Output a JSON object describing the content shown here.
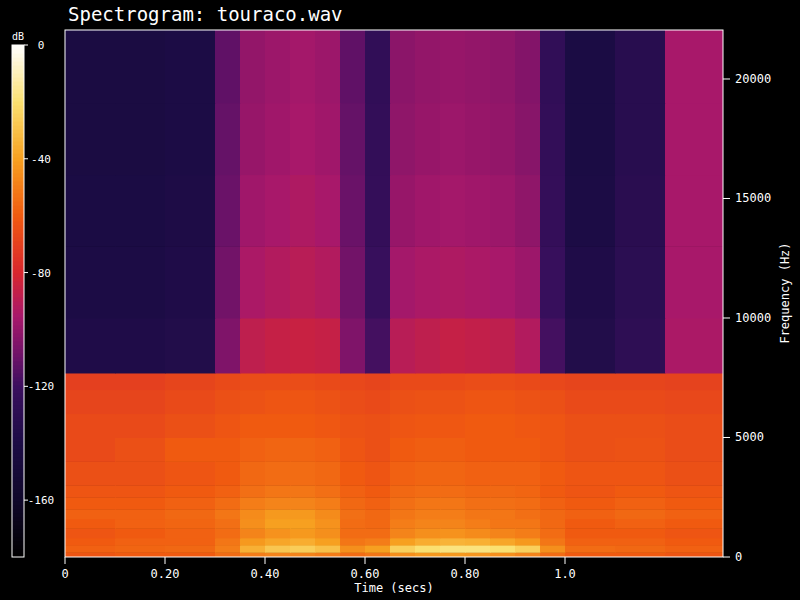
{
  "chart_data": {
    "type": "heatmap",
    "title": "Spectrogram: touraco.wav",
    "x_label": "Time (secs)",
    "y_label": "Frequency (Hz)",
    "xlim": [
      0,
      1.316
    ],
    "ylim": [
      0,
      22050
    ],
    "xticks": [
      0,
      {
        "value": 0.2,
        "label": "0.20"
      },
      {
        "value": 0.4,
        "label": "0.40"
      },
      {
        "value": 0.6,
        "label": "0.60"
      },
      {
        "value": 0.8,
        "label": "0.80"
      },
      {
        "value": 1.0,
        "label": "1.0"
      }
    ],
    "yticks": [
      0,
      5000,
      10000,
      15000,
      20000
    ],
    "time_edges": [
      0,
      0.1,
      0.2,
      0.3,
      0.35,
      0.4,
      0.45,
      0.5,
      0.55,
      0.6,
      0.65,
      0.7,
      0.75,
      0.8,
      0.85,
      0.9,
      0.95,
      1.0,
      1.1,
      1.2,
      1.316
    ],
    "frequency_edges": [
      0,
      200,
      500,
      800,
      1200,
      1600,
      2000,
      2500,
      3000,
      4000,
      5000,
      6000,
      7000,
      7700,
      10000,
      13000,
      16000,
      19000,
      22050
    ],
    "cells": [
      [
        -62,
        -60,
        -60,
        -55,
        -50,
        -48,
        -48,
        -50,
        -55,
        -52,
        -45,
        -42,
        -42,
        -43,
        -45,
        -48,
        -55,
        -60,
        -60,
        -62
      ],
      [
        -58,
        -57,
        -56,
        -50,
        -35,
        -28,
        -26,
        -30,
        -45,
        -40,
        -25,
        -20,
        -18,
        -18,
        -20,
        -25,
        -45,
        -55,
        -56,
        -58
      ],
      [
        -60,
        -58,
        -58,
        -52,
        -42,
        -38,
        -36,
        -40,
        -52,
        -50,
        -40,
        -36,
        -34,
        -35,
        -38,
        -42,
        -52,
        -58,
        -58,
        -60
      ],
      [
        -62,
        -60,
        -58,
        -55,
        -48,
        -44,
        -42,
        -45,
        -55,
        -55,
        -48,
        -45,
        -44,
        -46,
        -48,
        -50,
        -55,
        -60,
        -60,
        -62
      ],
      [
        -60,
        -58,
        -57,
        -54,
        -45,
        -40,
        -40,
        -44,
        -55,
        -56,
        -50,
        -48,
        -48,
        -50,
        -52,
        -52,
        -56,
        -60,
        -58,
        -60
      ],
      [
        -58,
        -58,
        -56,
        -52,
        -46,
        -42,
        -42,
        -46,
        -54,
        -56,
        -52,
        -50,
        -50,
        -52,
        -52,
        -54,
        -56,
        -58,
        -56,
        -58
      ],
      [
        -60,
        -60,
        -58,
        -55,
        -50,
        -48,
        -48,
        -50,
        -56,
        -58,
        -54,
        -52,
        -52,
        -54,
        -54,
        -55,
        -58,
        -60,
        -58,
        -60
      ],
      [
        -62,
        -62,
        -60,
        -58,
        -54,
        -52,
        -52,
        -54,
        -58,
        -60,
        -56,
        -55,
        -55,
        -56,
        -56,
        -57,
        -60,
        -62,
        -60,
        -62
      ],
      [
        -64,
        -64,
        -62,
        -60,
        -56,
        -55,
        -55,
        -56,
        -60,
        -62,
        -58,
        -57,
        -57,
        -58,
        -58,
        -58,
        -60,
        -62,
        -62,
        -64
      ],
      [
        -66,
        -64,
        -60,
        -60,
        -58,
        -57,
        -57,
        -58,
        -62,
        -64,
        -60,
        -59,
        -59,
        -60,
        -60,
        -60,
        -62,
        -64,
        -63,
        -65
      ],
      [
        -66,
        -66,
        -64,
        -62,
        -60,
        -60,
        -60,
        -61,
        -63,
        -64,
        -62,
        -61,
        -61,
        -60,
        -60,
        -61,
        -62,
        -64,
        -64,
        -65
      ],
      [
        -68,
        -68,
        -66,
        -64,
        -63,
        -62,
        -62,
        -63,
        -65,
        -66,
        -64,
        -63,
        -63,
        -62,
        -62,
        -63,
        -64,
        -66,
        -66,
        -67
      ],
      [
        -70,
        -70,
        -68,
        -66,
        -65,
        -65,
        -65,
        -66,
        -67,
        -68,
        -66,
        -66,
        -66,
        -65,
        -65,
        -66,
        -67,
        -68,
        -68,
        -69
      ],
      [
        -138,
        -138,
        -136,
        -105,
        -88,
        -86,
        -85,
        -86,
        -105,
        -118,
        -90,
        -88,
        -86,
        -87,
        -88,
        -92,
        -118,
        -136,
        -128,
        -94
      ],
      [
        -140,
        -140,
        -138,
        -108,
        -94,
        -92,
        -90,
        -92,
        -108,
        -122,
        -96,
        -94,
        -93,
        -94,
        -95,
        -98,
        -122,
        -138,
        -130,
        -95
      ],
      [
        -141,
        -141,
        -139,
        -110,
        -97,
        -95,
        -93,
        -95,
        -110,
        -124,
        -99,
        -97,
        -96,
        -97,
        -98,
        -101,
        -124,
        -140,
        -131,
        -95
      ],
      [
        -142,
        -142,
        -140,
        -111,
        -99,
        -97,
        -95,
        -97,
        -111,
        -125,
        -101,
        -99,
        -98,
        -99,
        -100,
        -103,
        -125,
        -141,
        -132,
        -95
      ],
      [
        -142,
        -142,
        -140,
        -112,
        -100,
        -98,
        -96,
        -98,
        -112,
        -126,
        -102,
        -100,
        -99,
        -100,
        -101,
        -104,
        -126,
        -141,
        -132,
        -95
      ]
    ],
    "colorbar": {
      "label": "dB",
      "range": [
        -180,
        0
      ],
      "ticks": [
        0,
        -40,
        -80,
        -120,
        -160
      ]
    }
  }
}
